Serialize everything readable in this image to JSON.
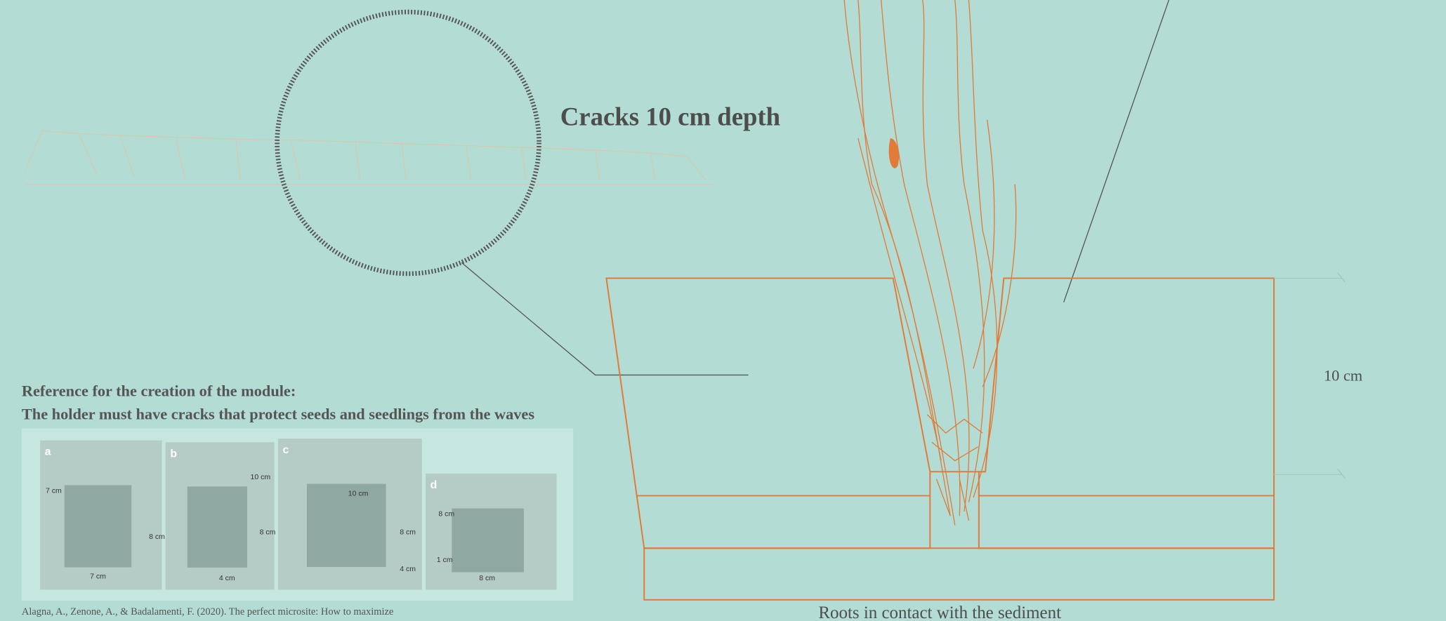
{
  "annotation": {
    "circle_label": "Cracks 10 cm depth",
    "dimension": "10 cm",
    "roots": "Roots in contact with the sediment"
  },
  "reference": {
    "title": "Reference for the creation of the module:",
    "subtitle": "The holder must have cracks that protect seeds  and seedlings from the waves",
    "citation": "Alagna, A., Zenone, A., & Badalamenti, F. (2020). The perfect microsite: How to maximize",
    "panels": [
      {
        "label": "a",
        "dims": [
          "7 cm",
          "8 cm",
          "7 cm"
        ]
      },
      {
        "label": "b",
        "dims": [
          "10 cm",
          "8 cm",
          "4 cm"
        ]
      },
      {
        "label": "c",
        "dims": [
          "10 cm",
          "8 cm",
          "4 cm"
        ]
      },
      {
        "label": "d",
        "dims": [
          "8 cm",
          "1 cm",
          "8 cm"
        ]
      }
    ]
  }
}
